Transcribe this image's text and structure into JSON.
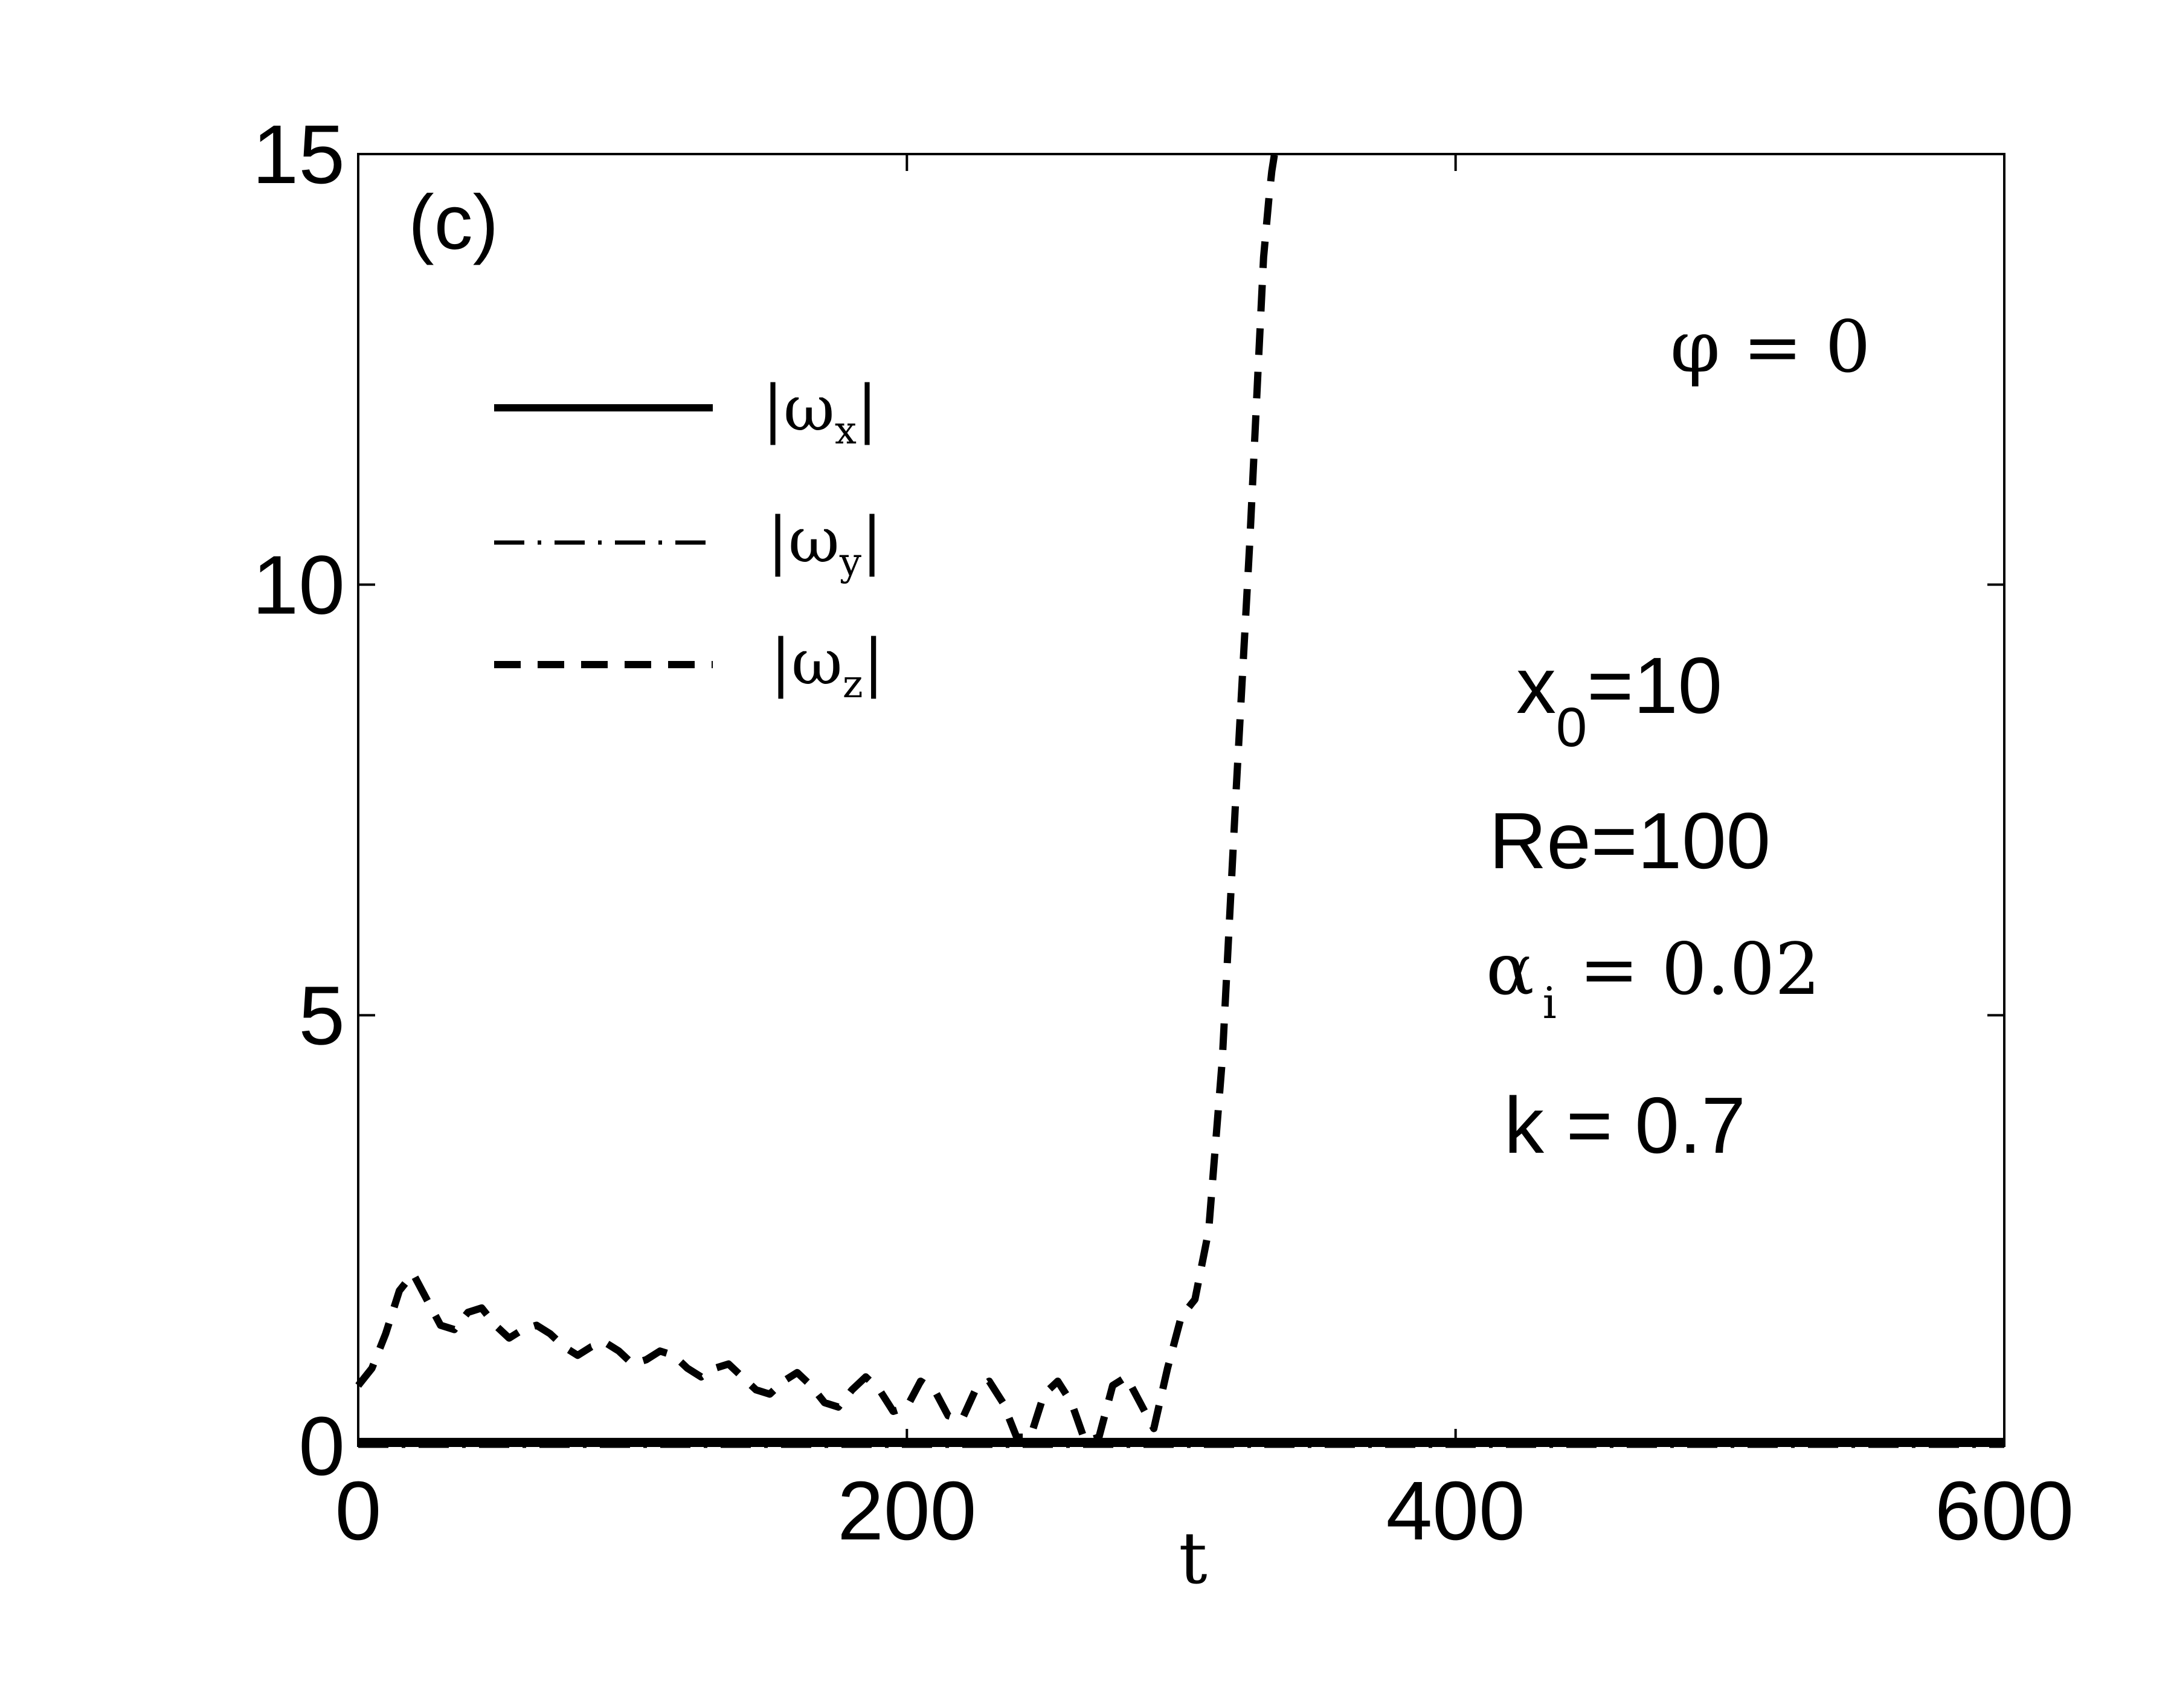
{
  "chart_data": {
    "type": "line",
    "panel_label": "(c)",
    "xlabel": "t",
    "ylabel": "",
    "xlim": [
      0,
      600
    ],
    "ylim": [
      0,
      15
    ],
    "x_ticks": [
      0,
      200,
      400,
      600
    ],
    "y_ticks": [
      0,
      5,
      10,
      15
    ],
    "x_tick_labels": [
      "0",
      "200",
      "400",
      "600"
    ],
    "y_tick_labels": [
      "0",
      "5",
      "10",
      "15"
    ],
    "grid": false,
    "legend_position": "upper-left",
    "series": [
      {
        "name": "|ωx|",
        "legend": {
          "base": "|ω",
          "sub": "x",
          "end": "|"
        },
        "style": "solid",
        "x": [
          0,
          600
        ],
        "y": [
          0.05,
          0.05
        ]
      },
      {
        "name": "|ωy|",
        "legend": {
          "base": "|ω",
          "sub": "y",
          "end": "|"
        },
        "style": "dashdot",
        "x": [
          0,
          600
        ],
        "y": [
          0.0,
          0.0
        ]
      },
      {
        "name": "|ωz|",
        "legend": {
          "base": "|ω",
          "sub": "z",
          "end": "|"
        },
        "style": "dashed",
        "x": [
          0,
          5,
          10,
          15,
          20,
          25,
          30,
          35,
          40,
          45,
          50,
          55,
          60,
          65,
          70,
          75,
          80,
          85,
          90,
          95,
          100,
          105,
          110,
          115,
          120,
          125,
          130,
          135,
          140,
          145,
          150,
          155,
          160,
          165,
          170,
          175,
          180,
          185,
          190,
          195,
          200,
          205,
          210,
          215,
          220,
          225,
          230,
          235,
          240,
          245,
          250,
          255,
          260,
          265,
          270,
          275,
          280,
          285,
          290,
          295,
          300,
          305,
          310,
          315,
          320,
          325,
          328,
          330,
          332,
          333,
          334
        ],
        "y": [
          0.7,
          0.9,
          1.3,
          1.8,
          2.0,
          1.7,
          1.4,
          1.35,
          1.55,
          1.6,
          1.4,
          1.25,
          1.35,
          1.4,
          1.3,
          1.15,
          1.05,
          1.15,
          1.2,
          1.1,
          0.95,
          1.0,
          1.1,
          1.05,
          0.9,
          0.8,
          0.9,
          0.95,
          0.8,
          0.65,
          0.6,
          0.75,
          0.85,
          0.7,
          0.5,
          0.45,
          0.65,
          0.8,
          0.65,
          0.4,
          0.45,
          0.75,
          0.65,
          0.35,
          0.3,
          0.65,
          0.75,
          0.5,
          0.1,
          0.1,
          0.6,
          0.75,
          0.5,
          0.05,
          0.1,
          0.7,
          0.8,
          0.5,
          0.2,
          0.9,
          1.5,
          1.7,
          2.5,
          4.5,
          7.6,
          10.5,
          12.5,
          13.8,
          14.5,
          14.8,
          15.0
        ]
      }
    ],
    "annotations": {
      "phi": {
        "lhs": "φ",
        "rhs": " = 0"
      },
      "x0": {
        "base": "x",
        "sub": "0",
        "rest": "=10"
      },
      "re": "Re=100",
      "alpha": {
        "base": "α",
        "sub": "i",
        "rest": " = 0.02"
      },
      "k": "k = 0.7"
    }
  }
}
